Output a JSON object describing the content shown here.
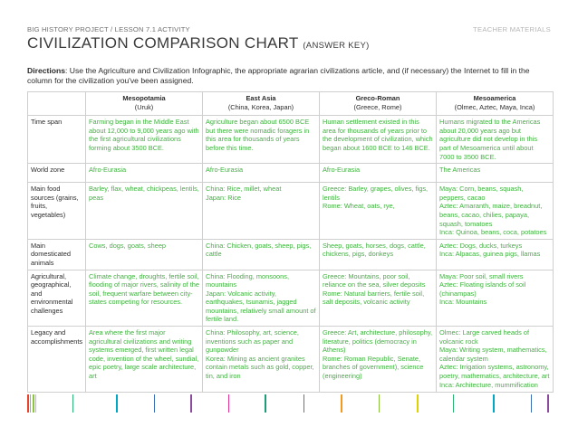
{
  "header": {
    "project_line": "BIG HISTORY PROJECT / LESSON 7.1 ACTIVITY",
    "teacher_label": "TEACHER MATERIALS",
    "title": "CIVILIZATION COMPARISON CHART",
    "title_sub": "(ANSWER KEY)"
  },
  "directions": {
    "label": "Directions",
    "text": ": Use the Agriculture and Civilization Infographic, the appropriate agrarian civilizations article, and (if necessary) the Internet to fill in the column for the civilization you've been assigned."
  },
  "table": {
    "columns": [
      {
        "name": "Mesopotamia",
        "sub": "(Uruk)"
      },
      {
        "name": "East Asia",
        "sub": "(China, Korea, Japan)"
      },
      {
        "name": "Greco-Roman",
        "sub": "(Greece, Rome)"
      },
      {
        "name": "Mesoamerica",
        "sub": "(Olmec, Aztec, Maya, Inca)"
      }
    ],
    "rows": [
      {
        "label": "Time span",
        "cells": [
          [
            "Farming began in the Middle East about 12,000 to 9,000 years ago with the first agricultural civilizations forming about 3500 BCE."
          ],
          [
            "Agriculture began about 6500 BCE but there were nomadic foragers in this area for thousands of years before this time."
          ],
          [
            "Human settlement existed in this area for thousands of years prior to the development of civilization, which began about 1600 BCE to 146 BCE."
          ],
          [
            "Humans migrated to the Americas about 20,000 years ago but agriculture did not develop in this part of Mesoamerica until about 7000 to 3500 BCE."
          ]
        ]
      },
      {
        "label": "World zone",
        "cells": [
          [
            "Afro-Eurasia"
          ],
          [
            "Afro-Eurasia"
          ],
          [
            "Afro-Eurasia"
          ],
          [
            "The Americas"
          ]
        ]
      },
      {
        "label": "Main food sources (grains, fruits, vegetables)",
        "cells": [
          [
            "Barley, flax, wheat, chickpeas, lentils, peas"
          ],
          [
            "China: Rice, millet, wheat",
            "Japan: Rice"
          ],
          [
            "Greece: Barley, grapes, olives, figs, lentils",
            "Rome: Wheat, oats, rye,"
          ],
          [
            "Maya: Corn, beans, squash, peppers, cacao",
            "Aztec: Amaranth, maize, breadnut, beans, cacao, chilies, papaya, squash, tomatoes",
            "Inca: Quinoa, beans, coca, potatoes"
          ]
        ]
      },
      {
        "label": "Main domesticated animals",
        "cells": [
          [
            "Cows, dogs, goats, sheep"
          ],
          [
            "China: Chicken, goats, sheep, pigs, cattle"
          ],
          [
            "Sheep, goats, horses, dogs, cattle, chickens, pigs, donkeys"
          ],
          [
            "Aztec: Dogs, ducks, turkeys",
            "Inca: Alpacas, guinea pigs, llamas"
          ]
        ]
      },
      {
        "label": "Agricultural, geographical, and environmental challenges",
        "cells": [
          [
            "Climate change, droughts, fertile soil, flooding of major rivers, salinity of the soil, frequent warfare between city-states competing for resources."
          ],
          [
            "China: Flooding, monsoons, mountains",
            "Japan: Volcanic activity, earthquakes, tsunamis, jagged mountains, relatively small amount of fertile land."
          ],
          [
            "Greece: Mountains, poor soil, reliance on the sea, silver deposits",
            "Rome: Natural barriers, fertile soil, salt deposits, volcanic activity"
          ],
          [
            "Maya: Poor soil, small rivers",
            "Aztec: Floating islands of soil (chinampas)",
            "Inca: Mountains"
          ]
        ]
      },
      {
        "label": "Legacy and accomplishments",
        "cells": [
          [
            "Area where the first major agricultural civilizations and writing systems emerged, first written legal code, invention of the wheel, sundial, epic poetry, large scale architecture, art"
          ],
          [
            "China: Philosophy, art, science, inventions such as paper and gunpowder",
            "Korea: Mining as ancient granites contain metals such as gold, copper, tin, and iron"
          ],
          [
            "Greece: Art, architecture, philosophy, literature, politics (democracy in Athens)",
            "Rome: Roman Republic, Senate, branches of government), science (engineering)"
          ],
          [
            "Olmec: Large carved heads of volcanic rock",
            "Maya: Writing system, mathematics, calendar system",
            "Aztec: Irrigation systems, astronomy, poetry, mathematics, architecture, art",
            "Inca: Architecture, mummification"
          ]
        ]
      }
    ]
  },
  "footer_bar_colors": [
    "#e8442b",
    "#f39a1d",
    "#8cc63f",
    "#e0d200",
    "#2bb673",
    "#00a8c6",
    "#3d6fb6",
    "#8a4a9e",
    "#e0309a",
    "#1b9e77"
  ]
}
